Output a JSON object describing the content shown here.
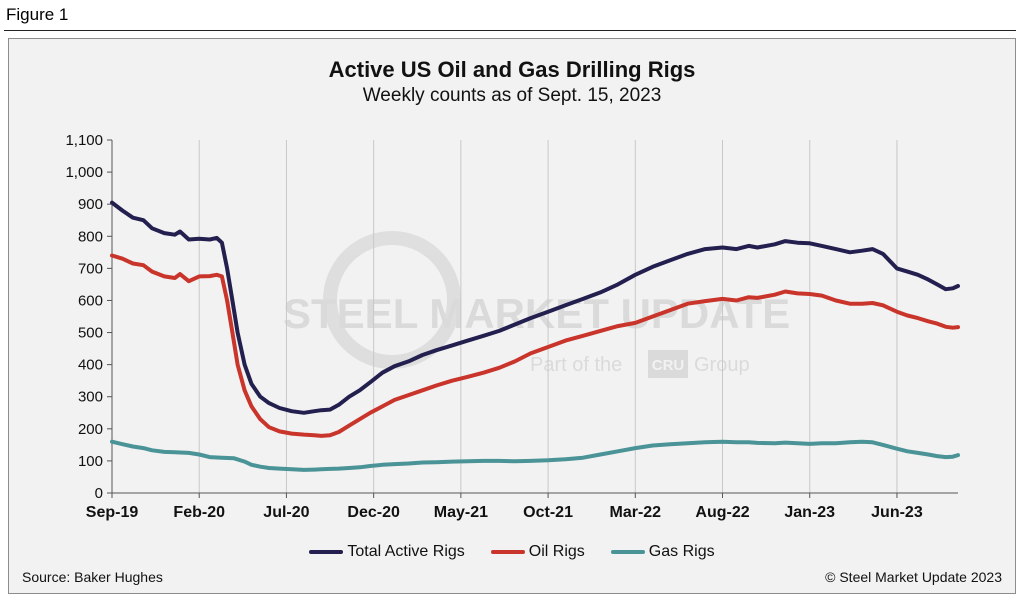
{
  "figure_label": "Figure 1",
  "source": "Source: Baker Hughes",
  "copyright": "© Steel Market Update 2023",
  "watermark": {
    "brand": "STEEL MARKET UPDATE",
    "tagline_prefix": "Part of the",
    "tagline_logo": "CRU",
    "tagline_suffix": "Group"
  },
  "chart_data": {
    "type": "line",
    "title": "Active US Oil and Gas Drilling Rigs",
    "subtitle": "Weekly counts as of Sept. 15, 2023",
    "xlabel": "",
    "ylabel": "",
    "ylim": [
      0,
      1100
    ],
    "yticks": [
      0,
      100,
      200,
      300,
      400,
      500,
      600,
      700,
      800,
      900,
      1000,
      1100
    ],
    "ytick_labels": [
      "0",
      "100",
      "200",
      "300",
      "400",
      "500",
      "600",
      "700",
      "800",
      "900",
      "1,000",
      "1,100"
    ],
    "xlim": [
      0,
      48.5
    ],
    "xticks": [
      0,
      5,
      10,
      15,
      20,
      25,
      30,
      35,
      40,
      45
    ],
    "xtick_labels": [
      "Sep-19",
      "Feb-20",
      "Jul-20",
      "Dec-20",
      "May-21",
      "Oct-21",
      "Mar-22",
      "Aug-22",
      "Jan-23",
      "Jun-23"
    ],
    "grid": "vertical",
    "legend": "bottom",
    "series": [
      {
        "name": "Total Active Rigs",
        "color": "#23204f",
        "points": [
          [
            0,
            905
          ],
          [
            0.6,
            880
          ],
          [
            1.2,
            858
          ],
          [
            1.8,
            850
          ],
          [
            2.3,
            825
          ],
          [
            3,
            810
          ],
          [
            3.6,
            805
          ],
          [
            3.9,
            815
          ],
          [
            4.4,
            790
          ],
          [
            5,
            792
          ],
          [
            5.6,
            790
          ],
          [
            6,
            795
          ],
          [
            6.3,
            780
          ],
          [
            6.6,
            700
          ],
          [
            6.9,
            600
          ],
          [
            7.2,
            500
          ],
          [
            7.6,
            400
          ],
          [
            8,
            340
          ],
          [
            8.5,
            300
          ],
          [
            9,
            280
          ],
          [
            9.6,
            265
          ],
          [
            10.3,
            255
          ],
          [
            11,
            250
          ],
          [
            11.6,
            255
          ],
          [
            12,
            258
          ],
          [
            12.5,
            260
          ],
          [
            13,
            275
          ],
          [
            13.6,
            300
          ],
          [
            14.2,
            320
          ],
          [
            14.8,
            345
          ],
          [
            15.5,
            375
          ],
          [
            16.2,
            395
          ],
          [
            17,
            410
          ],
          [
            17.8,
            430
          ],
          [
            18.6,
            445
          ],
          [
            19.5,
            460
          ],
          [
            20.4,
            475
          ],
          [
            21.3,
            490
          ],
          [
            22.2,
            505
          ],
          [
            23.1,
            525
          ],
          [
            24,
            545
          ],
          [
            25,
            565
          ],
          [
            26,
            585
          ],
          [
            27,
            605
          ],
          [
            28,
            625
          ],
          [
            29,
            650
          ],
          [
            30,
            680
          ],
          [
            31,
            705
          ],
          [
            32,
            725
          ],
          [
            33,
            745
          ],
          [
            34,
            760
          ],
          [
            35,
            765
          ],
          [
            35.8,
            760
          ],
          [
            36.5,
            770
          ],
          [
            37,
            765
          ],
          [
            38,
            775
          ],
          [
            38.6,
            785
          ],
          [
            39.3,
            780
          ],
          [
            40,
            778
          ],
          [
            40.7,
            770
          ],
          [
            41.5,
            760
          ],
          [
            42.3,
            750
          ],
          [
            43,
            755
          ],
          [
            43.6,
            760
          ],
          [
            44.2,
            745
          ],
          [
            45,
            700
          ],
          [
            45.6,
            690
          ],
          [
            46.2,
            680
          ],
          [
            46.8,
            665
          ],
          [
            47.3,
            650
          ],
          [
            47.8,
            635
          ],
          [
            48.2,
            638
          ],
          [
            48.5,
            645
          ]
        ]
      },
      {
        "name": "Oil Rigs",
        "color": "#c9342b",
        "points": [
          [
            0,
            740
          ],
          [
            0.6,
            730
          ],
          [
            1.2,
            715
          ],
          [
            1.8,
            710
          ],
          [
            2.3,
            690
          ],
          [
            3,
            675
          ],
          [
            3.6,
            670
          ],
          [
            3.9,
            682
          ],
          [
            4.4,
            660
          ],
          [
            5,
            675
          ],
          [
            5.6,
            676
          ],
          [
            6,
            680
          ],
          [
            6.3,
            675
          ],
          [
            6.6,
            600
          ],
          [
            6.9,
            500
          ],
          [
            7.2,
            400
          ],
          [
            7.6,
            320
          ],
          [
            8,
            270
          ],
          [
            8.5,
            230
          ],
          [
            9,
            205
          ],
          [
            9.6,
            192
          ],
          [
            10.3,
            185
          ],
          [
            11,
            182
          ],
          [
            11.6,
            180
          ],
          [
            12,
            178
          ],
          [
            12.5,
            180
          ],
          [
            13,
            190
          ],
          [
            13.6,
            210
          ],
          [
            14.2,
            230
          ],
          [
            14.8,
            250
          ],
          [
            15.5,
            270
          ],
          [
            16.2,
            290
          ],
          [
            17,
            305
          ],
          [
            17.8,
            320
          ],
          [
            18.6,
            335
          ],
          [
            19.5,
            350
          ],
          [
            20.4,
            362
          ],
          [
            21.3,
            375
          ],
          [
            22.2,
            390
          ],
          [
            23.1,
            410
          ],
          [
            24,
            435
          ],
          [
            25,
            455
          ],
          [
            26,
            475
          ],
          [
            27,
            490
          ],
          [
            28,
            505
          ],
          [
            29,
            520
          ],
          [
            30,
            530
          ],
          [
            31,
            550
          ],
          [
            32,
            570
          ],
          [
            33,
            590
          ],
          [
            34,
            598
          ],
          [
            35,
            605
          ],
          [
            35.8,
            600
          ],
          [
            36.5,
            610
          ],
          [
            37,
            608
          ],
          [
            38,
            618
          ],
          [
            38.6,
            628
          ],
          [
            39.3,
            622
          ],
          [
            40,
            620
          ],
          [
            40.7,
            615
          ],
          [
            41.5,
            600
          ],
          [
            42.3,
            590
          ],
          [
            43,
            590
          ],
          [
            43.6,
            592
          ],
          [
            44.2,
            585
          ],
          [
            45,
            565
          ],
          [
            45.6,
            553
          ],
          [
            46.2,
            545
          ],
          [
            46.8,
            535
          ],
          [
            47.3,
            528
          ],
          [
            47.8,
            518
          ],
          [
            48.2,
            515
          ],
          [
            48.5,
            517
          ]
        ]
      },
      {
        "name": "Gas Rigs",
        "color": "#4a9396",
        "points": [
          [
            0,
            160
          ],
          [
            0.6,
            152
          ],
          [
            1.2,
            145
          ],
          [
            1.8,
            140
          ],
          [
            2.3,
            133
          ],
          [
            3,
            128
          ],
          [
            3.6,
            127
          ],
          [
            4.4,
            125
          ],
          [
            5,
            120
          ],
          [
            5.6,
            112
          ],
          [
            6.3,
            110
          ],
          [
            7,
            108
          ],
          [
            7.6,
            98
          ],
          [
            8,
            88
          ],
          [
            8.5,
            82
          ],
          [
            9,
            78
          ],
          [
            9.6,
            76
          ],
          [
            10.3,
            74
          ],
          [
            11,
            72
          ],
          [
            11.6,
            73
          ],
          [
            12,
            74
          ],
          [
            12.5,
            75
          ],
          [
            13,
            76
          ],
          [
            13.6,
            78
          ],
          [
            14.2,
            80
          ],
          [
            14.8,
            84
          ],
          [
            15.5,
            88
          ],
          [
            16.2,
            90
          ],
          [
            17,
            92
          ],
          [
            17.8,
            95
          ],
          [
            18.6,
            96
          ],
          [
            19.5,
            98
          ],
          [
            20.4,
            99
          ],
          [
            21.3,
            100
          ],
          [
            22.2,
            100
          ],
          [
            23.1,
            99
          ],
          [
            24,
            100
          ],
          [
            25,
            102
          ],
          [
            26,
            105
          ],
          [
            27,
            110
          ],
          [
            28,
            120
          ],
          [
            29,
            130
          ],
          [
            30,
            140
          ],
          [
            31,
            148
          ],
          [
            32,
            152
          ],
          [
            33,
            155
          ],
          [
            34,
            158
          ],
          [
            35,
            160
          ],
          [
            35.8,
            158
          ],
          [
            36.5,
            158
          ],
          [
            37,
            156
          ],
          [
            38,
            155
          ],
          [
            38.6,
            157
          ],
          [
            39.3,
            155
          ],
          [
            40,
            153
          ],
          [
            40.7,
            155
          ],
          [
            41.5,
            155
          ],
          [
            42.3,
            158
          ],
          [
            43,
            160
          ],
          [
            43.6,
            158
          ],
          [
            44.2,
            150
          ],
          [
            45,
            138
          ],
          [
            45.6,
            130
          ],
          [
            46.2,
            125
          ],
          [
            46.8,
            120
          ],
          [
            47.3,
            115
          ],
          [
            47.8,
            112
          ],
          [
            48.2,
            113
          ],
          [
            48.5,
            118
          ]
        ]
      }
    ]
  }
}
